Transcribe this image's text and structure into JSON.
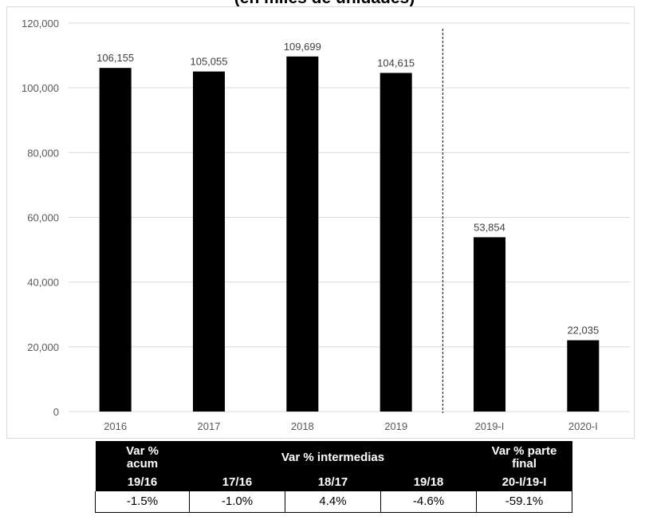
{
  "chart_data": {
    "type": "bar",
    "title": "(en miles de unidades)",
    "categories": [
      "2016",
      "2017",
      "2018",
      "2019",
      "2019-I",
      "2020-I"
    ],
    "values": [
      106155,
      105055,
      109699,
      104615,
      53854,
      22035
    ],
    "data_labels": [
      "106,155",
      "105,055",
      "109,699",
      "104,615",
      "53,854",
      "22,035"
    ],
    "ylim": [
      0,
      120000
    ],
    "yticks": [
      0,
      20000,
      40000,
      60000,
      80000,
      100000,
      120000
    ],
    "ytick_labels": [
      "0",
      "20,000",
      "40,000",
      "60,000",
      "80,000",
      "100,000",
      "120,000"
    ],
    "grid": true,
    "bar_color": "#000000",
    "grid_color": "#d9d9d9",
    "divider": "dashed line between 2019 and 2019-I"
  },
  "variation_table": {
    "col1_header_top": "Var %",
    "col1_header_mid": "acum",
    "col1_header_bottom": "19/16",
    "middle_header": "Var % intermedias",
    "middle_subheaders": [
      "17/16",
      "18/17",
      "19/18"
    ],
    "last_header_top": "Var % parte",
    "last_header_mid": "final",
    "last_header_bottom": "20-I/19-I",
    "values": [
      "-1.5%",
      "-1.0%",
      "4.4%",
      "-4.6%",
      "-59.1%"
    ]
  }
}
